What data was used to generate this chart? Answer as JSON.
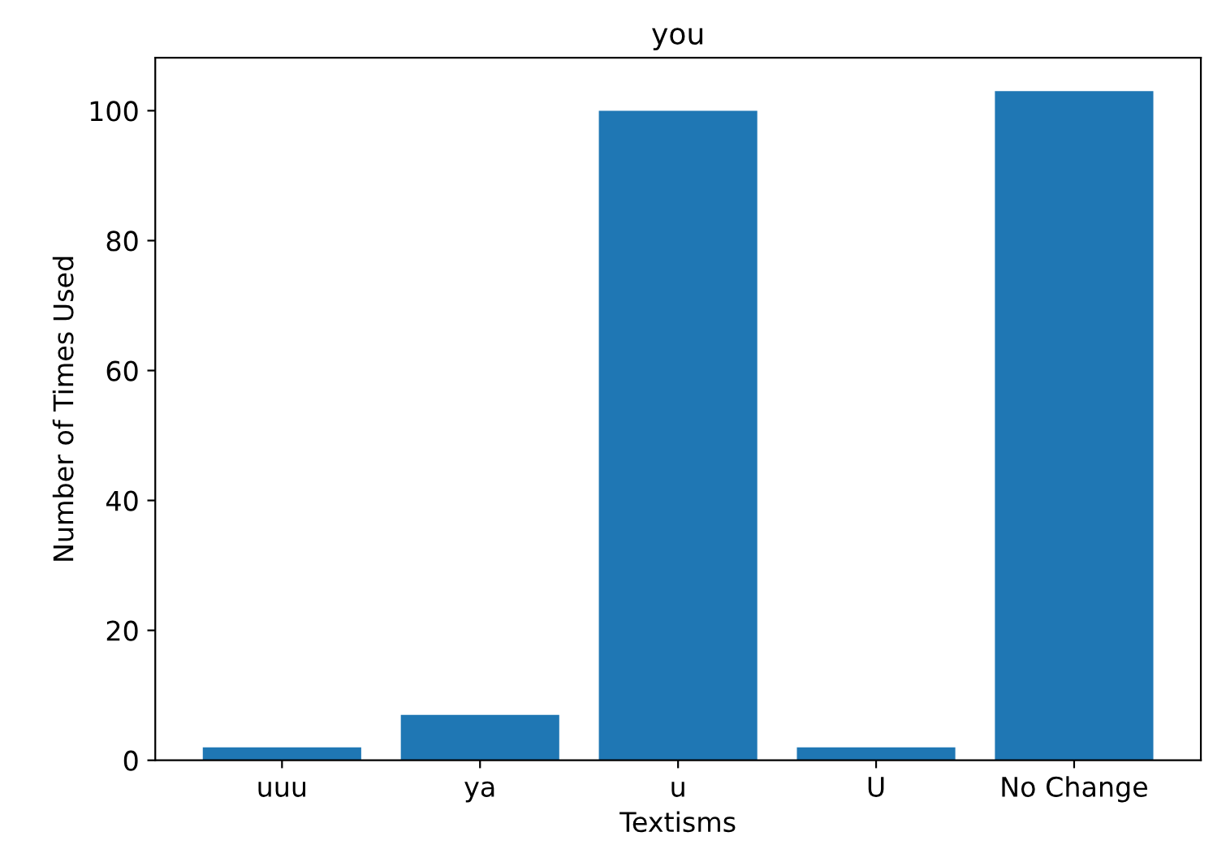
{
  "chart_data": {
    "type": "bar",
    "title": "you",
    "xlabel": "Textisms",
    "ylabel": "Number of Times Used",
    "categories": [
      "uuu",
      "ya",
      "u",
      "U",
      "No Change"
    ],
    "values": [
      2,
      7,
      100,
      2,
      103
    ],
    "color": "#1f77b4",
    "ylim": [
      0,
      108.15
    ],
    "yticks": [
      0,
      20,
      40,
      60,
      80,
      100
    ],
    "grid": false
  }
}
